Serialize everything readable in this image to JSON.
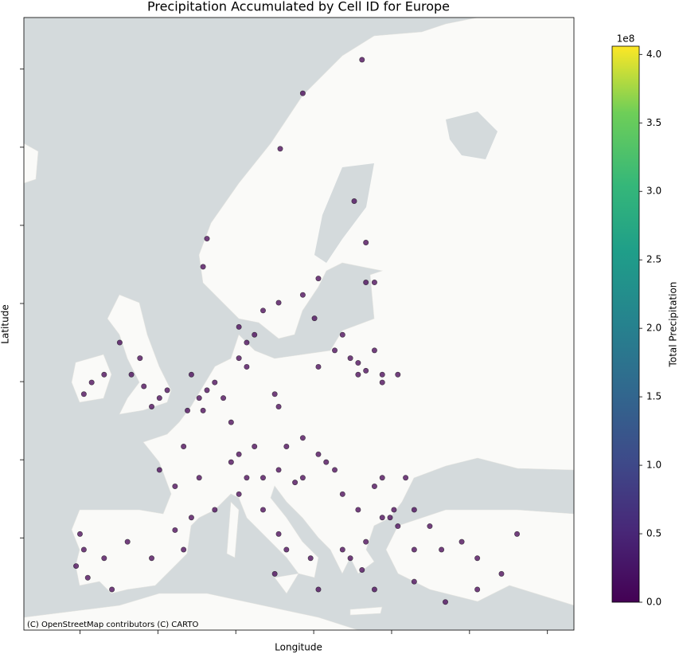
{
  "chart_data": {
    "type": "scatter",
    "title": "Precipitation Accumulated by Cell ID for Europe",
    "xlabel": "Longitude",
    "ylabel": "Latitude",
    "attribution": "(C) OpenStreetMap contributors (C) CARTO",
    "colorbar_label": "Total Precipitation",
    "colorbar_offset": "1e8",
    "colormap": "viridis",
    "clim": [
      0,
      406000000
    ],
    "cticks": [
      {
        "value": 0,
        "label": "0.0"
      },
      {
        "value": 50000000,
        "label": "0.5"
      },
      {
        "value": 100000000,
        "label": "1.0"
      },
      {
        "value": 150000000,
        "label": "1.5"
      },
      {
        "value": 200000000,
        "label": "2.0"
      },
      {
        "value": 250000000,
        "label": "2.5"
      },
      {
        "value": 300000000,
        "label": "3.0"
      },
      {
        "value": 350000000,
        "label": "3.5"
      },
      {
        "value": 400000000,
        "label": "4.0"
      }
    ],
    "xlim": [
      -1.72,
      5.34
    ],
    "xticks": [
      -1,
      0,
      1,
      2,
      3,
      4,
      5
    ],
    "ylim": [
      3.82,
      11.66
    ],
    "yticks": [
      5,
      6,
      7,
      8,
      9,
      10,
      11
    ],
    "x": [
      -0.18,
      -0.34,
      0.02,
      -0.08,
      -0.23,
      -0.49,
      0.12,
      -0.85,
      -0.95,
      -0.69,
      0.63,
      0.53,
      0.73,
      0.43,
      0.84,
      0.58,
      0.38,
      1.04,
      1.14,
      1.55,
      1.5,
      0.94,
      1.04,
      0.94,
      1.24,
      1.14,
      0.33,
      0.53,
      0.22,
      0.73,
      0.43,
      0.02,
      -1.0,
      -0.95,
      -1.05,
      -0.9,
      -0.39,
      -0.08,
      -0.59,
      -0.69,
      0.33,
      0.22,
      1.04,
      1.35,
      1.55,
      1.96,
      2.06,
      1.35,
      1.65,
      1.5,
      2.57,
      2.67,
      2.47,
      2.78,
      2.88,
      2.37,
      2.67,
      2.78,
      2.57,
      2.06,
      1.65,
      1.86,
      2.06,
      2.16,
      2.27,
      1.86,
      1.76,
      1.55,
      2.37,
      2.57,
      2.78,
      2.88,
      2.98,
      3.08,
      3.03,
      2.88,
      2.67,
      2.47,
      2.62,
      2.37,
      2.78,
      3.29,
      3.64,
      4.1,
      4.41,
      4.1,
      3.69,
      3.9,
      4.61,
      3.29,
      2.62,
      1.86,
      1.57,
      2.52,
      2.67,
      2.06,
      1.86,
      1.55,
      1.35,
      1.04,
      1.24,
      0.58,
      0.63,
      1.14,
      2.01,
      2.27,
      3.18,
      3.29,
      3.49,
      2.88,
      3.08
    ],
    "y": [
      6.94,
      7.09,
      6.79,
      6.68,
      7.3,
      7.5,
      6.89,
      6.99,
      6.84,
      7.09,
      6.89,
      6.79,
      6.99,
      7.09,
      6.79,
      6.63,
      6.63,
      7.3,
      7.19,
      6.68,
      6.84,
      6.48,
      6.07,
      5.97,
      6.17,
      5.77,
      6.17,
      5.77,
      5.66,
      5.36,
      5.26,
      5.87,
      5.05,
      4.85,
      4.64,
      4.49,
      4.95,
      4.74,
      4.34,
      4.74,
      4.85,
      5.1,
      5.56,
      5.36,
      5.05,
      4.74,
      4.34,
      5.77,
      4.85,
      4.54,
      7.24,
      7.14,
      7.3,
      7.4,
      7.09,
      7.6,
      8.27,
      8.27,
      7.09,
      7.19,
      6.17,
      6.28,
      6.07,
      5.97,
      5.87,
      5.77,
      5.71,
      5.87,
      5.56,
      5.36,
      5.66,
      5.77,
      5.26,
      5.15,
      5.36,
      5.26,
      4.95,
      4.74,
      4.59,
      4.85,
      4.34,
      4.85,
      4.85,
      4.74,
      4.54,
      4.34,
      4.18,
      4.95,
      5.05,
      4.44,
      11.12,
      10.69,
      9.98,
      9.31,
      8.78,
      8.32,
      8.11,
      8.01,
      7.91,
      7.7,
      7.6,
      8.47,
      8.83,
      7.5,
      7.81,
      7.4,
      5.77,
      5.36,
      5.15,
      6.99,
      7.09
    ],
    "values": [
      0,
      0,
      0,
      0,
      0,
      0,
      0,
      0,
      0,
      0,
      0,
      0,
      0,
      0,
      0,
      0,
      0,
      0,
      0,
      0,
      0,
      0,
      0,
      0,
      0,
      0,
      0,
      0,
      0,
      0,
      0,
      0,
      0,
      0,
      0,
      0,
      0,
      0,
      0,
      0,
      0,
      0,
      0,
      0,
      0,
      0,
      0,
      0,
      0,
      0,
      0,
      0,
      0,
      0,
      0,
      0,
      0,
      0,
      0,
      0,
      0,
      0,
      0,
      0,
      0,
      0,
      0,
      0,
      0,
      0,
      0,
      0,
      0,
      0,
      0,
      0,
      0,
      0,
      0,
      0,
      0,
      0,
      0,
      0,
      0,
      0,
      0,
      0,
      0,
      0,
      0,
      0,
      0,
      0,
      0,
      0,
      0,
      0,
      0,
      0,
      0,
      0,
      0,
      0,
      0,
      0,
      0,
      0,
      0,
      0,
      0
    ]
  }
}
